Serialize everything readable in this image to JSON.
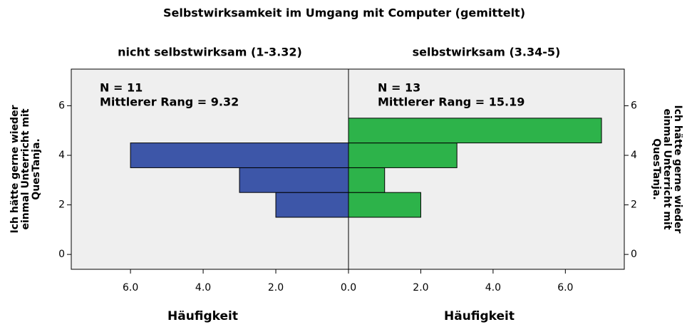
{
  "chart_data": {
    "type": "bar",
    "title": "Selbstwirksamkeit im Umgang mit Computer (gemittelt)",
    "ylabel": [
      "Ich hätte gerne wieder",
      "einmal Unterricht mit",
      "QuesTanja."
    ],
    "ylim": [
      -0.6,
      7.48
    ],
    "yticks": [
      0,
      2,
      4,
      6
    ],
    "bins": [
      1.5,
      2.5,
      3.5,
      4.5,
      5.5
    ],
    "panels": [
      {
        "subtitle": "nicht selbstwirksam (1-3.32)",
        "annotations": [
          "N = 11",
          "Mittlerer Rang = 9.32"
        ],
        "values": [
          2,
          3,
          6,
          0
        ],
        "color": "#3d56a8",
        "direction": "left",
        "xlim": [
          0,
          7.63
        ],
        "xticks": [
          {
            "value": 0,
            "label": "0.0"
          },
          {
            "value": 2,
            "label": "2.0"
          },
          {
            "value": 4,
            "label": "4.0"
          },
          {
            "value": 6,
            "label": "6.0"
          }
        ],
        "xlabel": "Häufigkeit"
      },
      {
        "subtitle": "selbstwirksam (3.34-5)",
        "annotations": [
          "N = 13",
          "Mittlerer Rang = 15.19"
        ],
        "values": [
          2,
          1,
          3,
          7
        ],
        "color": "#2db34a",
        "direction": "right",
        "xlim": [
          0,
          7.63
        ],
        "xticks": [
          {
            "value": 2,
            "label": "2.0"
          },
          {
            "value": 4,
            "label": "4.0"
          },
          {
            "value": 6,
            "label": "6.0"
          }
        ],
        "xlabel": "Häufigkeit"
      }
    ]
  }
}
